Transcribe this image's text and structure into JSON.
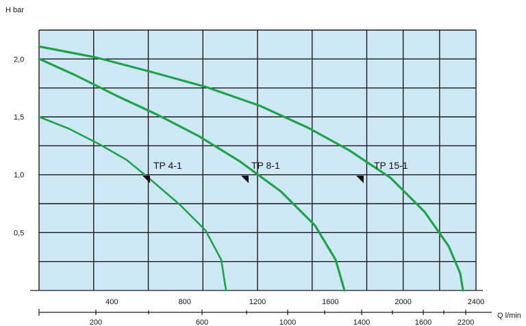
{
  "chart_data": {
    "type": "line",
    "ylabel": "H bar",
    "xlabel": "Q l/min",
    "y_ticks": [
      {
        "value": 2.0,
        "label": "2,0"
      },
      {
        "value": 1.5,
        "label": "1,5"
      },
      {
        "value": 1.0,
        "label": "1,0"
      },
      {
        "value": 0.5,
        "label": "0,5"
      }
    ],
    "x_ticks_upper": [
      {
        "value": 400,
        "label": "400"
      },
      {
        "value": 800,
        "label": "800"
      },
      {
        "value": 1200,
        "label": "1200"
      },
      {
        "value": 1600,
        "label": "1600"
      },
      {
        "value": 2000,
        "label": "2000"
      },
      {
        "value": 2400,
        "label": "2400"
      }
    ],
    "x_ticks_lower": [
      {
        "value": 200,
        "label": "200"
      },
      {
        "value": 600,
        "label": "600"
      },
      {
        "value": 1000,
        "label": "1000"
      },
      {
        "value": 1400,
        "label": "1400"
      },
      {
        "value": 1600,
        "label": "1600"
      },
      {
        "value": 2200,
        "label": "2200"
      }
    ],
    "series": [
      {
        "name": "TP 4-1",
        "points": [
          [
            0,
            1.5
          ],
          [
            100,
            1.33
          ],
          [
            200,
            1.16
          ],
          [
            300,
            0.95
          ],
          [
            400,
            0.7
          ],
          [
            500,
            0.38
          ],
          [
            600,
            0.0
          ]
        ]
      },
      {
        "name": "TP 8-1",
        "points": [
          [
            0,
            2.0
          ],
          [
            200,
            1.83
          ],
          [
            400,
            1.62
          ],
          [
            600,
            1.38
          ],
          [
            800,
            1.12
          ],
          [
            1000,
            0.8
          ],
          [
            1200,
            0.38
          ],
          [
            1300,
            0.0
          ]
        ]
      },
      {
        "name": "TP 15-1",
        "points": [
          [
            0,
            2.1
          ],
          [
            400,
            1.92
          ],
          [
            800,
            1.7
          ],
          [
            1200,
            1.4
          ],
          [
            1600,
            1.03
          ],
          [
            2000,
            0.55
          ],
          [
            2200,
            0.0
          ]
        ]
      }
    ],
    "annotations": [
      {
        "text": "TP 4-1"
      },
      {
        "text": "TP 8-1"
      },
      {
        "text": "TP 15-1"
      }
    ],
    "xlim": [
      0,
      2400
    ],
    "ylim": [
      0,
      2.25
    ],
    "grid": true,
    "background_color": "#cfe8f6",
    "curve_color": "#1ea24a"
  }
}
